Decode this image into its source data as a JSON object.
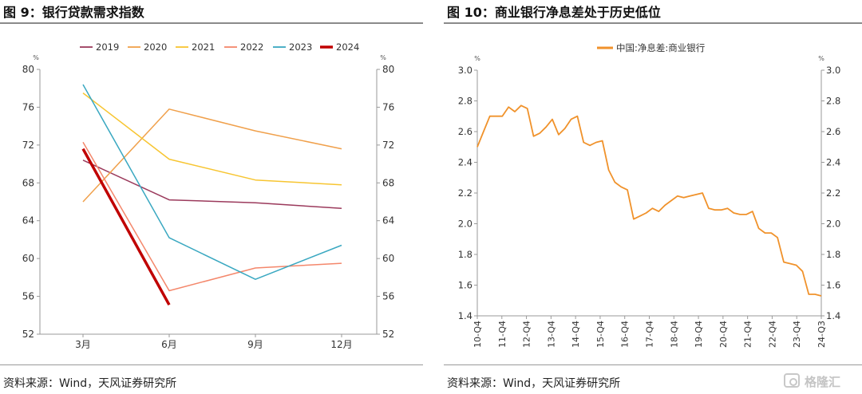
{
  "left": {
    "figure_title": "图 9：银行贷款需求指数",
    "source": "资料来源：Wind，天风证券研究所"
  },
  "right": {
    "figure_title": "图 10：商业银行净息差处于历史低位",
    "source": "资料来源：Wind，天风证券研究所"
  },
  "watermark": {
    "text": "格隆汇",
    "icon": "gelonghui-logo-icon"
  },
  "chart_data": [
    {
      "type": "line",
      "title": "",
      "unit_label": "%",
      "categories": [
        "3月",
        "6月",
        "9月",
        "12月"
      ],
      "ylim": [
        52,
        80
      ],
      "yticks": [
        52,
        56,
        60,
        64,
        68,
        72,
        76,
        80
      ],
      "grid": false,
      "legend_position": "top",
      "series": [
        {
          "name": "2019",
          "color": "#9b3a5c",
          "values": [
            70.4,
            66.2,
            65.9,
            65.3
          ]
        },
        {
          "name": "2020",
          "color": "#f0a04b",
          "values": [
            66.0,
            75.8,
            73.5,
            71.6
          ]
        },
        {
          "name": "2021",
          "color": "#f7c531",
          "values": [
            77.5,
            70.5,
            68.3,
            67.8
          ]
        },
        {
          "name": "2022",
          "color": "#f4876b",
          "values": [
            72.3,
            56.6,
            59.0,
            59.5
          ]
        },
        {
          "name": "2023",
          "color": "#3aa8c1",
          "values": [
            78.4,
            62.2,
            57.8,
            61.4
          ]
        },
        {
          "name": "2024",
          "color": "#c00000",
          "values": [
            71.6,
            55.1,
            null,
            null
          ]
        }
      ]
    },
    {
      "type": "line",
      "title": "",
      "unit_label": "%",
      "ylim": [
        1.4,
        3.0
      ],
      "yticks": [
        "1.4",
        "1.6",
        "1.8",
        "2.0",
        "2.2",
        "2.4",
        "2.6",
        "2.8",
        "3.0"
      ],
      "grid": false,
      "legend_position": "top",
      "x_tick_labels": [
        "10-Q4",
        "11-Q4",
        "12-Q4",
        "13-Q4",
        "14-Q4",
        "15-Q4",
        "16-Q4",
        "17-Q4",
        "18-Q4",
        "19-Q4",
        "20-Q4",
        "21-Q4",
        "22-Q4",
        "23-Q4",
        "24-Q3"
      ],
      "x_start": "2010-Q4",
      "series": [
        {
          "name": "中国:净息差:商业银行",
          "color": "#f0922b",
          "values": [
            2.5,
            2.6,
            2.7,
            2.7,
            2.7,
            2.76,
            2.73,
            2.77,
            2.75,
            2.57,
            2.59,
            2.63,
            2.68,
            2.58,
            2.62,
            2.68,
            2.7,
            2.53,
            2.51,
            2.53,
            2.54,
            2.35,
            2.27,
            2.24,
            2.22,
            2.03,
            2.05,
            2.07,
            2.1,
            2.08,
            2.12,
            2.15,
            2.18,
            2.17,
            2.18,
            2.19,
            2.2,
            2.1,
            2.09,
            2.09,
            2.1,
            2.07,
            2.06,
            2.06,
            2.08,
            1.97,
            1.94,
            1.94,
            1.91,
            1.75,
            1.74,
            1.73,
            1.69,
            1.54,
            1.54,
            1.53
          ]
        }
      ]
    }
  ]
}
